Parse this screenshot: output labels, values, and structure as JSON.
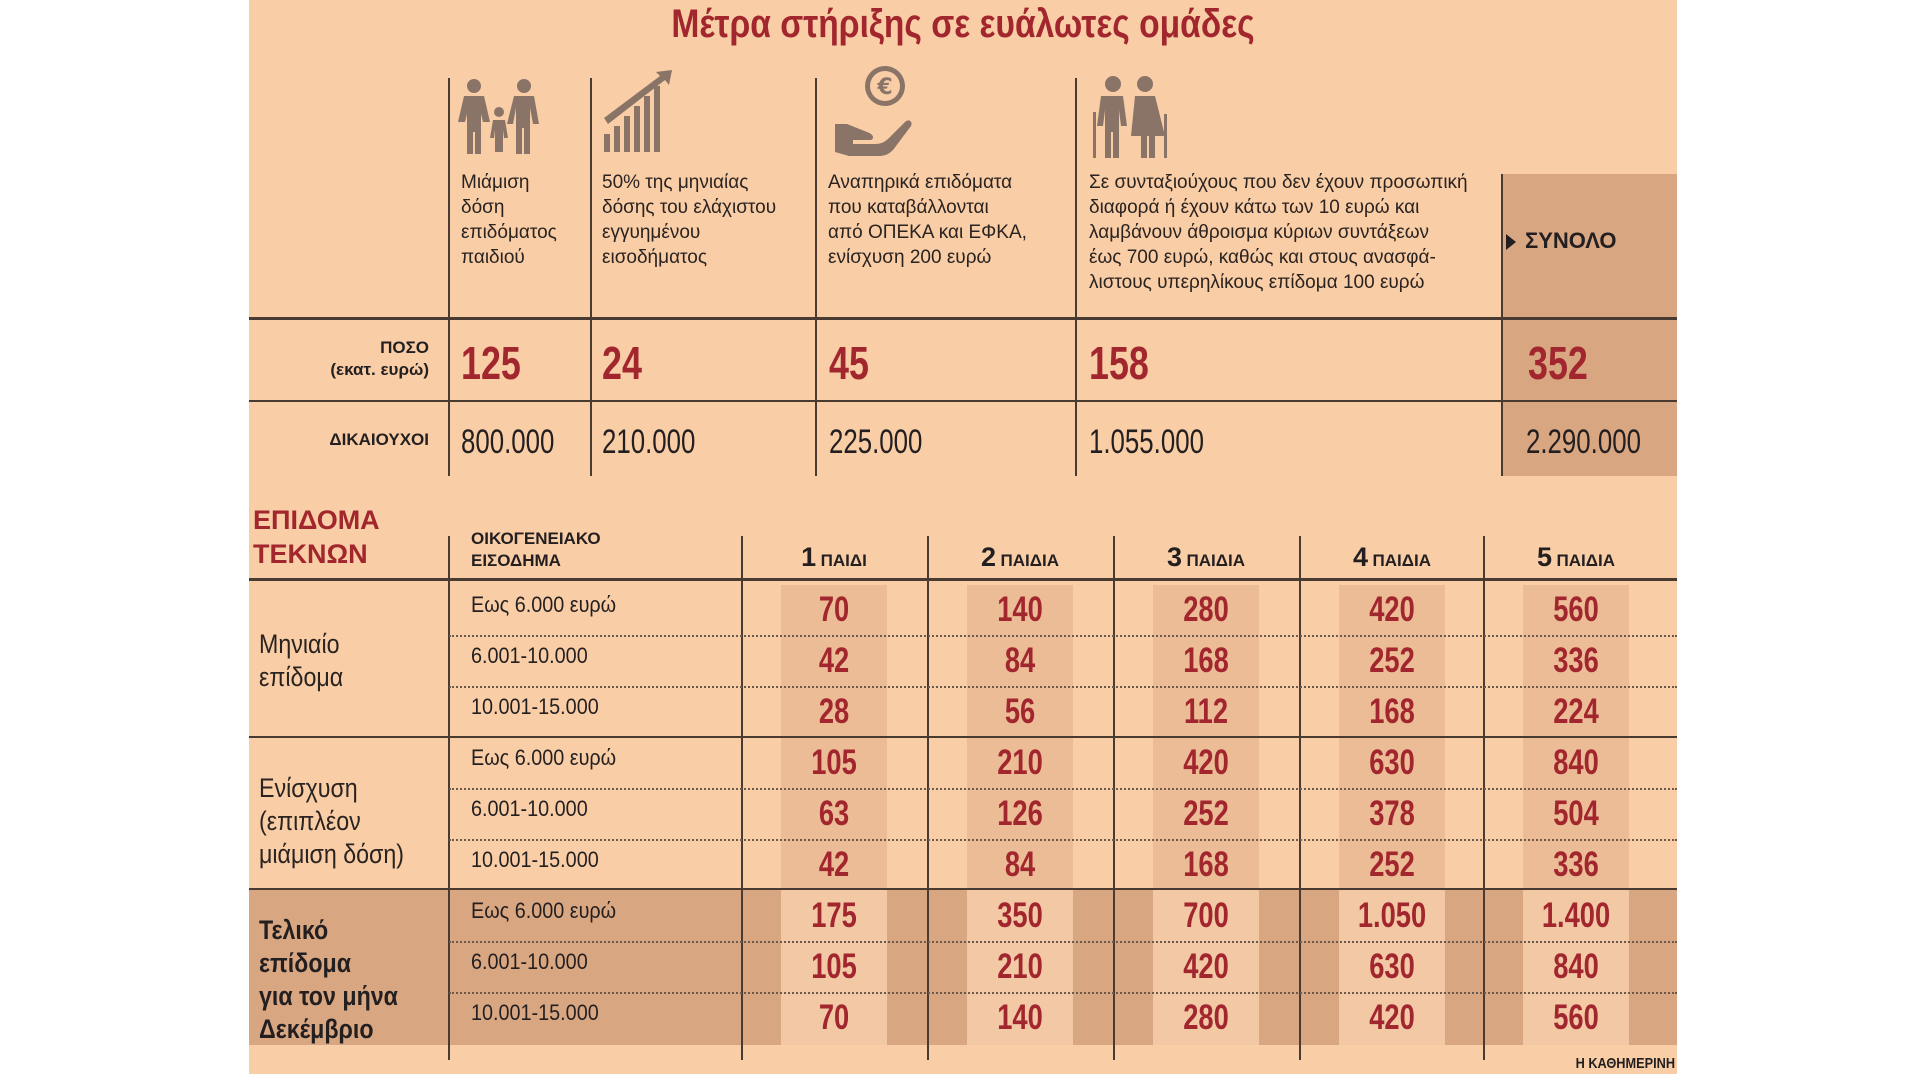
{
  "title": "Μέτρα στήριξης σε ευάλωτες ομάδες",
  "measures": [
    {
      "icon": "family-icon",
      "description": "Μιάμιση\nδόση\nεπιδόματος\nπαιδιού",
      "amount": "125",
      "beneficiaries": "800.000"
    },
    {
      "icon": "growth-chart-icon",
      "description": "50% της μηνιαίας\nδόσης του ελάχιστου\nεγγυημένου\nεισοδήματος",
      "amount": "24",
      "beneficiaries": "210.000"
    },
    {
      "icon": "euro-hand-icon",
      "description": "Αναπηρικά επιδόματα\nπου καταβάλλονται\nαπό ΟΠΕΚΑ και ΕΦΚΑ,\nενίσχυση 200 ευρώ",
      "amount": "45",
      "beneficiaries": "225.000"
    },
    {
      "icon": "elderly-couple-icon",
      "description": "Σε συνταξιούχους που δεν έχουν προσωπική\nδιαφορά ή έχουν κάτω των 10 ευρώ και\nλαμβάνουν άθροισμα κύριων συντάξεων\nέως 700 ευρώ, καθώς και στους ανασφά-\nλιστους υπερηλίκους επίδομα 100 ευρώ",
      "amount": "158",
      "beneficiaries": "1.055.000"
    }
  ],
  "total": {
    "label": "ΣΥΝΟΛΟ",
    "amount": "352",
    "beneficiaries": "2.290.000"
  },
  "row_labels": {
    "amount_line1": "ΠΟΣΟ",
    "amount_line2": "(εκατ. ευρώ)",
    "beneficiaries": "ΔΙΚΑΙΟΥΧΟΙ"
  },
  "child_benefit": {
    "title_line1": "ΕΠΙΔΟΜΑ",
    "title_line2": "ΤΕΚΝΩΝ",
    "income_header_line1": "ΟΙΚΟΓΕΝΕΙΑΚΟ",
    "income_header_line2": "ΕΙΣΟΔΗΜΑ",
    "children_headers": [
      {
        "n": "1",
        "word": "ΠΑΙΔΙ"
      },
      {
        "n": "2",
        "word": "ΠΑΙΔΙΑ"
      },
      {
        "n": "3",
        "word": "ΠΑΙΔΙΑ"
      },
      {
        "n": "4",
        "word": "ΠΑΙΔΙΑ"
      },
      {
        "n": "5",
        "word": "ΠΑΙΔΙΑ"
      }
    ],
    "groups": [
      {
        "label": "Μηνιαίο\nεπίδομα",
        "bold": false,
        "rows": [
          {
            "income": "Εως 6.000 ευρώ",
            "values": [
              "70",
              "140",
              "280",
              "420",
              "560"
            ]
          },
          {
            "income": "6.001-10.000",
            "values": [
              "42",
              "84",
              "168",
              "252",
              "336"
            ]
          },
          {
            "income": "10.001-15.000",
            "values": [
              "28",
              "56",
              "112",
              "168",
              "224"
            ]
          }
        ]
      },
      {
        "label": "Ενίσχυση\n(επιπλέον\nμιάμιση δόση)",
        "bold": false,
        "rows": [
          {
            "income": "Εως 6.000 ευρώ",
            "values": [
              "105",
              "210",
              "420",
              "630",
              "840"
            ]
          },
          {
            "income": "6.001-10.000",
            "values": [
              "63",
              "126",
              "252",
              "378",
              "504"
            ]
          },
          {
            "income": "10.001-15.000",
            "values": [
              "42",
              "84",
              "168",
              "252",
              "336"
            ]
          }
        ]
      },
      {
        "label": "Τελικό\nεπίδομα\nγια τον μήνα\nΔεκέμβριο",
        "bold": true,
        "rows": [
          {
            "income": "Εως 6.000 ευρώ",
            "values": [
              "175",
              "350",
              "700",
              "1.050",
              "1.400"
            ]
          },
          {
            "income": "6.001-10.000",
            "values": [
              "105",
              "210",
              "420",
              "630",
              "840"
            ]
          },
          {
            "income": "10.001-15.000",
            "values": [
              "70",
              "140",
              "280",
              "420",
              "560"
            ]
          }
        ]
      }
    ]
  },
  "credit": "Η ΚΑΘΗΜΕΡΙΝΗ"
}
